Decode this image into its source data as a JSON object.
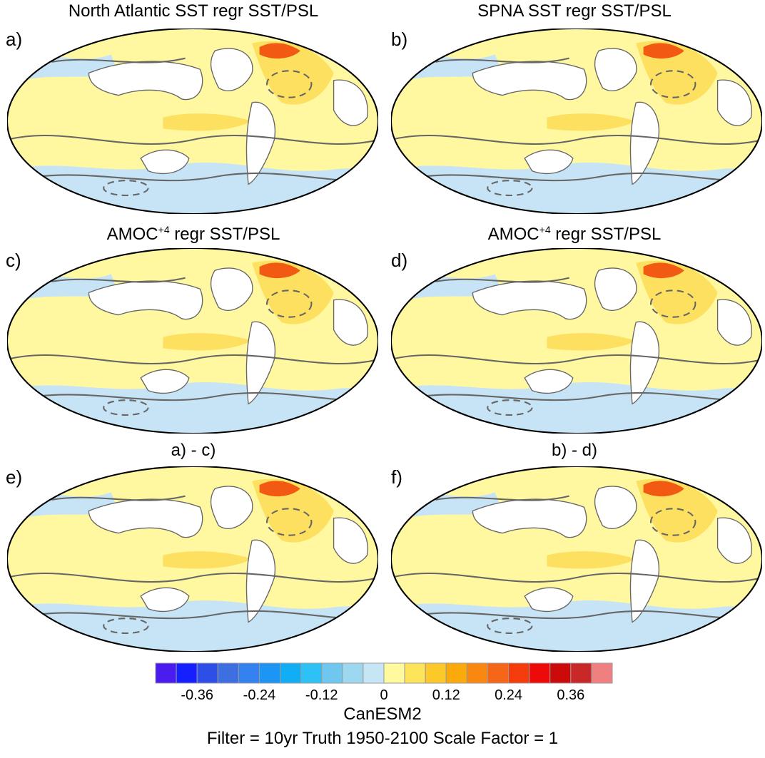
{
  "panels": [
    {
      "letter": "a)",
      "title": "North Atlantic SST regr SST/PSL"
    },
    {
      "letter": "b)",
      "title": "SPNA SST regr SST/PSL"
    },
    {
      "letter": "c)",
      "title_main": "AMOC",
      "title_sup": "+4",
      "title_rest": " regr SST/PSL"
    },
    {
      "letter": "d)",
      "title_main": "AMOC",
      "title_sup": "+4",
      "title_rest": " regr SST/PSL"
    },
    {
      "letter": "e)",
      "title": "a) - c)"
    },
    {
      "letter": "f)",
      "title": "b) - d)"
    }
  ],
  "colorbar": {
    "colors": [
      "#4b1cf0",
      "#1420ff",
      "#2d4fe8",
      "#3d6fe0",
      "#3382f0",
      "#1c95f5",
      "#12aef5",
      "#2ec1f5",
      "#6fc6ee",
      "#9ed8f0",
      "#c6e6f5",
      "#fffaa0",
      "#fde45a",
      "#fcc82a",
      "#fbaa0c",
      "#f88810",
      "#f66618",
      "#f43c0c",
      "#ee0a0a",
      "#cc0a0a",
      "#c82828",
      "#f08080"
    ],
    "tick_labels": [
      "-0.36",
      "-0.24",
      "-0.12",
      "0",
      "0.12",
      "0.24",
      "0.36"
    ]
  },
  "footer": {
    "model": "CanESM2",
    "settings": "Filter = 10yr   Truth 1950-2100   Scale Factor = 1"
  },
  "palette": {
    "ocean_warm": "#fff8a0",
    "ocean_warmer": "#fde060",
    "ocean_cool": "#c6e4f5",
    "hot": "#f25a14",
    "contour": "#666666"
  }
}
